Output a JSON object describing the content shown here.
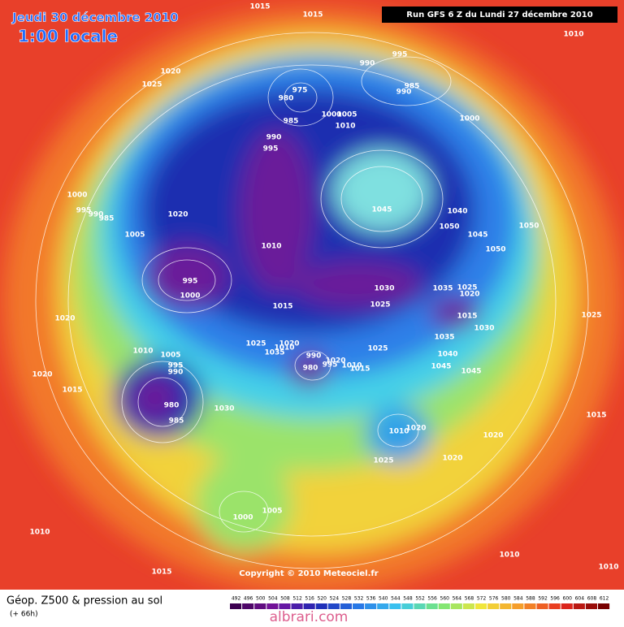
{
  "header": {
    "date": "Jeudi 30 décembre 2010",
    "time": "1:00 locale",
    "run": "Run GFS 6 Z du Lundi 27 décembre 2010"
  },
  "map": {
    "isobar_labels": [
      1015,
      1015,
      1010,
      995,
      990,
      985,
      990,
      1025,
      1020,
      975,
      980,
      1005,
      1000,
      985,
      1010,
      1000,
      990,
      995,
      1000,
      995,
      990,
      985,
      1020,
      1045,
      1040,
      1050,
      1050,
      1045,
      1050,
      1005,
      1010,
      995,
      1000,
      1030,
      1035,
      1025,
      1020,
      1025,
      1015,
      1015,
      1030,
      1020,
      1035,
      1025,
      1020,
      1010,
      1035,
      1025,
      1040,
      1010,
      1005,
      995,
      990,
      990,
      1020,
      980,
      995,
      1010,
      1015,
      1045,
      1045,
      1020,
      1015,
      980,
      985,
      1030,
      1010,
      1020,
      1025,
      1020,
      1020,
      1015,
      1025,
      1000,
      1005,
      1010,
      1010,
      1015,
      1010
    ],
    "copyright": "Copyright © 2010 Meteociel.fr"
  },
  "footer": {
    "title": "Géop. Z500 & pression au sol",
    "lead": "(+ 66h)",
    "scale": [
      492,
      496,
      500,
      504,
      508,
      512,
      516,
      520,
      524,
      528,
      532,
      536,
      540,
      544,
      548,
      552,
      556,
      560,
      564,
      568,
      572,
      576,
      580,
      584,
      588,
      592,
      596,
      600,
      604,
      608,
      612
    ],
    "watermark": "albrari.com"
  }
}
